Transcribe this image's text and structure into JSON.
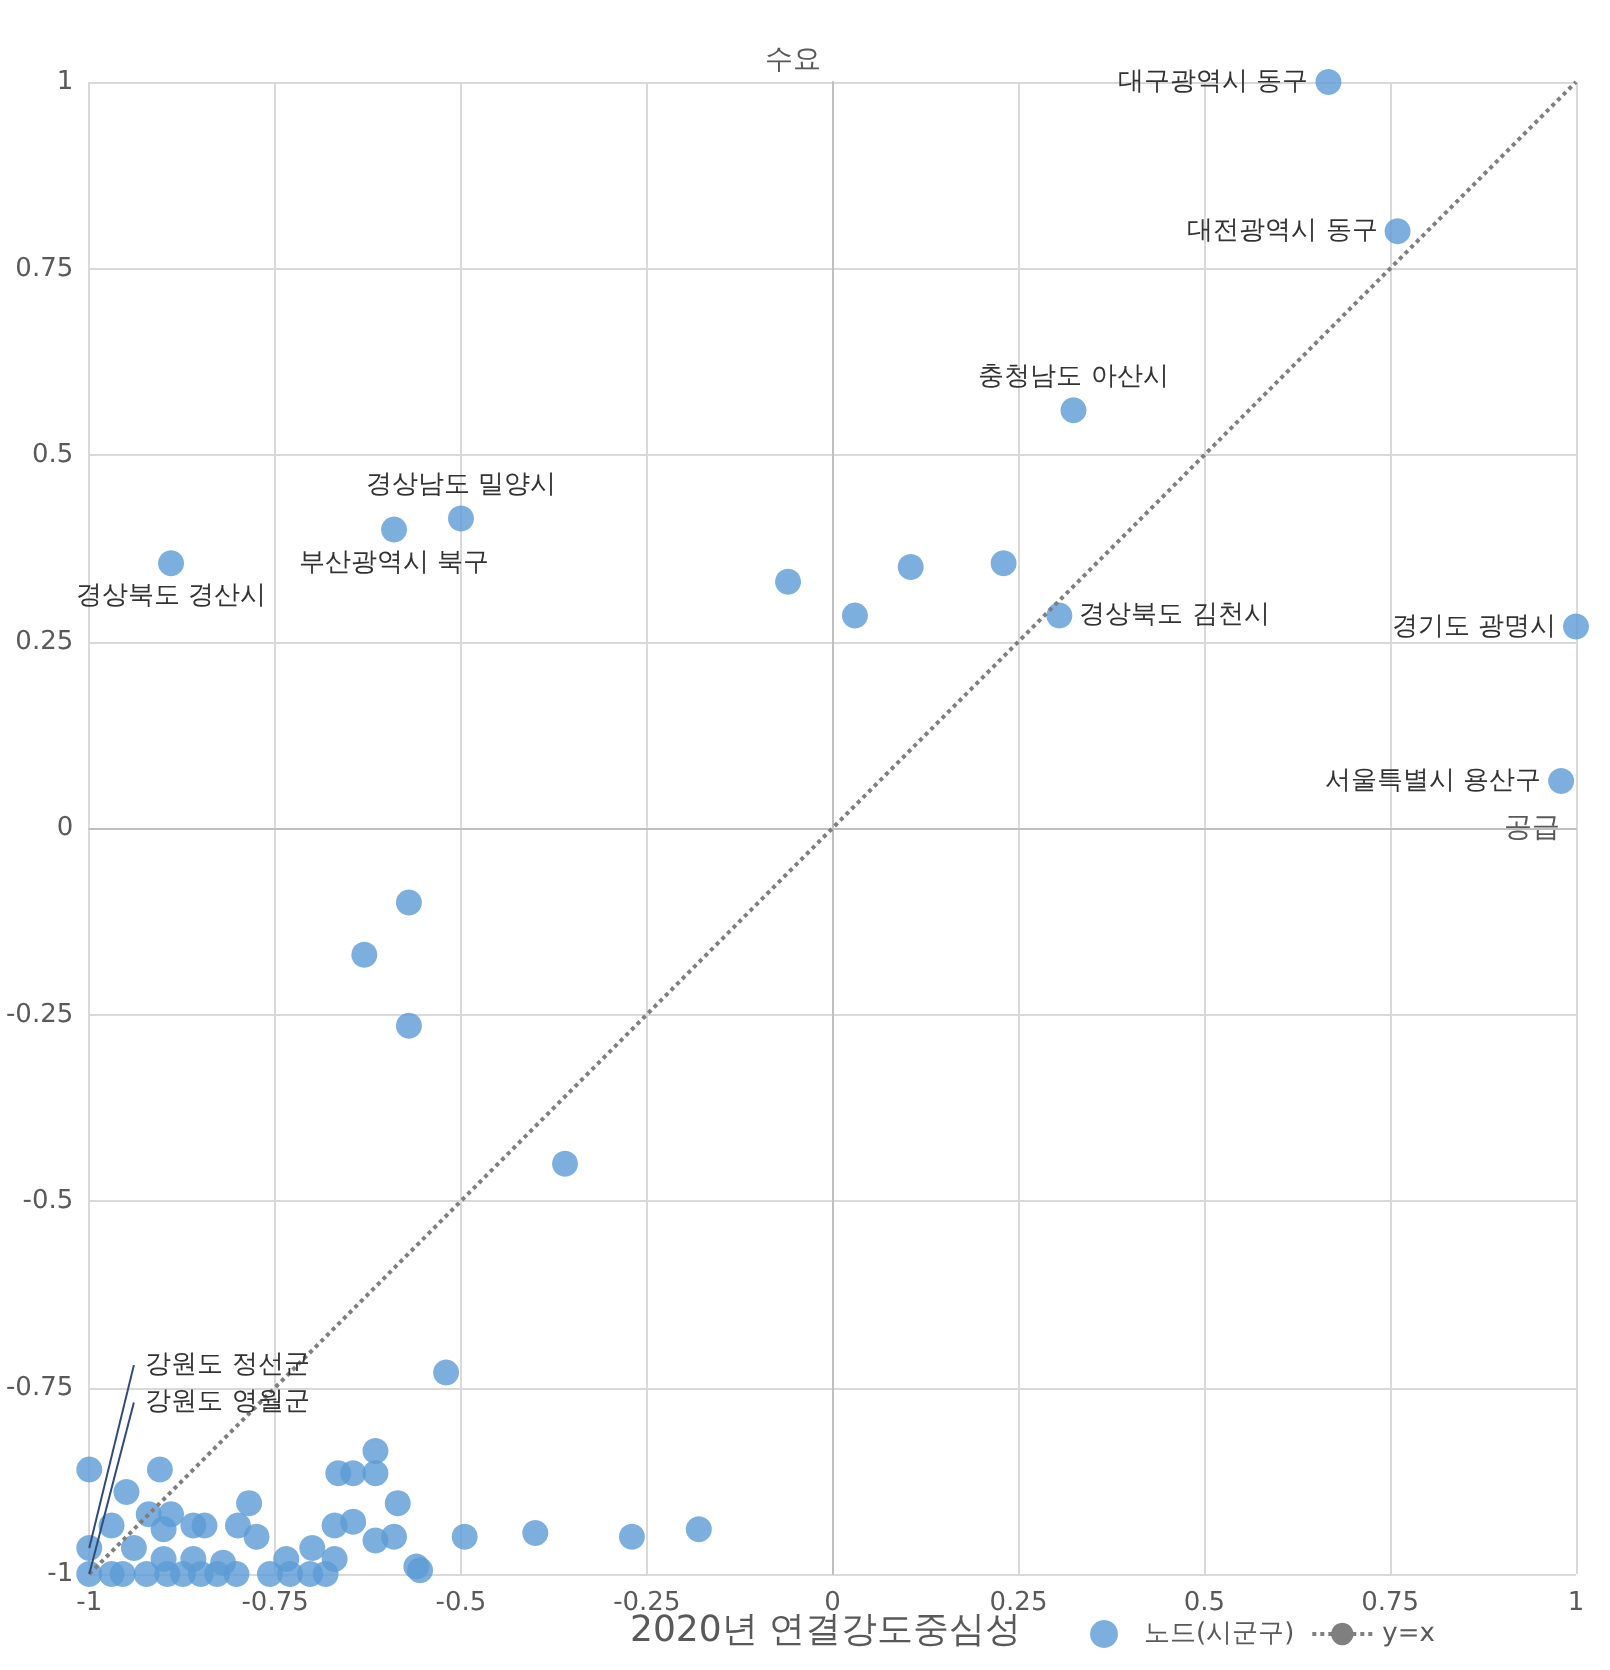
{
  "chart_data": {
    "type": "scatter",
    "title": "2020년 연결강도중심성",
    "xlabel": "공급",
    "ylabel": "수요",
    "xlim": [
      -1,
      1
    ],
    "ylim": [
      -1,
      1
    ],
    "xticks": [
      -1,
      -0.75,
      -0.5,
      -0.25,
      0,
      0.25,
      0.5,
      0.75,
      1
    ],
    "yticks": [
      -1,
      -0.75,
      -0.5,
      -0.25,
      0,
      0.25,
      0.5,
      0.75,
      1
    ],
    "grid": true,
    "legend": "bottom",
    "marker": "circle",
    "series": [
      {
        "name": "노드(시군구)",
        "color": "#5b9bd5",
        "x": [
          0.667,
          0.76,
          0.324,
          -0.5,
          -0.59,
          -0.89,
          0.305,
          1.0,
          0.98,
          -0.06,
          0.03,
          0.105,
          0.23,
          -0.57,
          -0.63,
          -0.57,
          -0.36,
          -0.52,
          -1,
          -1,
          -1,
          -0.905,
          -0.95,
          -0.97,
          -0.92,
          -0.89,
          -0.86,
          -0.845,
          -0.9,
          -0.785,
          -0.8,
          -0.775,
          -0.94,
          -0.735,
          -0.7,
          -0.67,
          -0.645,
          -0.615,
          -0.59,
          -0.585,
          -0.665,
          -0.645,
          -0.615,
          -0.615,
          -0.56,
          -0.555,
          -0.495,
          -0.4,
          -0.27,
          -0.18,
          -0.97,
          -0.955,
          -0.923,
          -0.895,
          -0.874,
          -0.85,
          -0.828,
          -0.802,
          -0.757,
          -0.73,
          -0.703,
          -0.682,
          -0.9,
          -0.86,
          -0.82,
          -0.67
        ],
        "values": [
          1.0,
          0.8,
          0.56,
          0.415,
          0.4,
          0.355,
          0.285,
          0.27,
          0.063,
          0.33,
          0.285,
          0.35,
          0.355,
          -0.1,
          -0.17,
          -0.265,
          -0.45,
          -0.73,
          -0.965,
          -1,
          -0.86,
          -0.86,
          -0.89,
          -0.935,
          -0.92,
          -0.92,
          -0.935,
          -0.935,
          -0.94,
          -0.905,
          -0.935,
          -0.95,
          -0.965,
          -0.98,
          -0.965,
          -0.935,
          -0.93,
          -0.955,
          -0.95,
          -0.905,
          -0.865,
          -0.865,
          -0.865,
          -0.835,
          -0.99,
          -0.995,
          -0.95,
          -0.945,
          -0.95,
          -0.94,
          -1,
          -1,
          -1,
          -1,
          -1,
          -1,
          -1,
          -1,
          -1,
          -1,
          -1,
          -1,
          -0.98,
          -0.98,
          -0.985,
          -0.98
        ]
      },
      {
        "name": "y=x",
        "type": "line",
        "color": "#7f7f7f",
        "line_style": "dotted",
        "marker": "none",
        "x": [
          -1,
          1
        ],
        "values": [
          -1,
          1
        ]
      }
    ],
    "annotations": [
      {
        "text": "대구광역시 동구",
        "x": 0.667,
        "y": 1.0
      },
      {
        "text": "대전광역시 동구",
        "x": 0.76,
        "y": 0.8
      },
      {
        "text": "충청남도 아산시",
        "x": 0.324,
        "y": 0.56
      },
      {
        "text": "경상남도 밀양시",
        "x": -0.5,
        "y": 0.415
      },
      {
        "text": "부산광역시 북구",
        "x": -0.59,
        "y": 0.4
      },
      {
        "text": "경상북도 경산시",
        "x": -0.89,
        "y": 0.355
      },
      {
        "text": "경상북도 김천시",
        "x": 0.305,
        "y": 0.285
      },
      {
        "text": "경기도 광명시",
        "x": 1.0,
        "y": 0.27
      },
      {
        "text": "서울특별시 용산구",
        "x": 0.98,
        "y": 0.063
      },
      {
        "text": "강원도 정선군",
        "x": -1,
        "y": -0.965
      },
      {
        "text": "강원도 영월군",
        "x": -1,
        "y": -1
      }
    ]
  }
}
